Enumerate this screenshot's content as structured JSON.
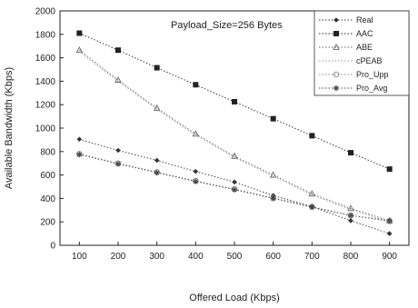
{
  "chart_data": {
    "type": "line",
    "title": "",
    "annotation": "Payload_Size=256 Bytes",
    "xlabel": "Offered Load (Kbps)",
    "ylabel": "Available Bandwidth (Kbps)",
    "x": [
      100,
      200,
      300,
      400,
      500,
      600,
      700,
      800,
      900
    ],
    "xlim": [
      50,
      950
    ],
    "ylim": [
      0,
      2000
    ],
    "xticks": [
      100,
      200,
      300,
      400,
      500,
      600,
      700,
      800,
      900
    ],
    "yticks": [
      0,
      200,
      400,
      600,
      800,
      1000,
      1200,
      1400,
      1600,
      1800,
      2000
    ],
    "grid": false,
    "legend_position": "top-right",
    "series": [
      {
        "name": "Real",
        "marker": "diamond",
        "color": "#333333",
        "values": [
          905,
          810,
          725,
          630,
          540,
          425,
          330,
          210,
          100
        ]
      },
      {
        "name": "AAC",
        "marker": "square",
        "color": "#222222",
        "values": [
          1810,
          1665,
          1515,
          1370,
          1225,
          1080,
          935,
          790,
          650
        ]
      },
      {
        "name": "ABE",
        "marker": "triangle",
        "color": "#666666",
        "values": [
          1665,
          1410,
          1170,
          950,
          760,
          600,
          440,
          315,
          210
        ]
      },
      {
        "name": "cPEAB",
        "marker": "none",
        "color": "#999999",
        "values": [
          1650,
          1400,
          1160,
          940,
          750,
          590,
          430,
          305,
          200
        ]
      },
      {
        "name": "Pro_Upp",
        "marker": "circle",
        "color": "#888888",
        "values": [
          780,
          700,
          625,
          550,
          480,
          405,
          330,
          255,
          205
        ]
      },
      {
        "name": "Pro_Avg",
        "marker": "star",
        "color": "#444444",
        "values": [
          775,
          695,
          620,
          545,
          475,
          400,
          325,
          255,
          210
        ]
      }
    ]
  }
}
